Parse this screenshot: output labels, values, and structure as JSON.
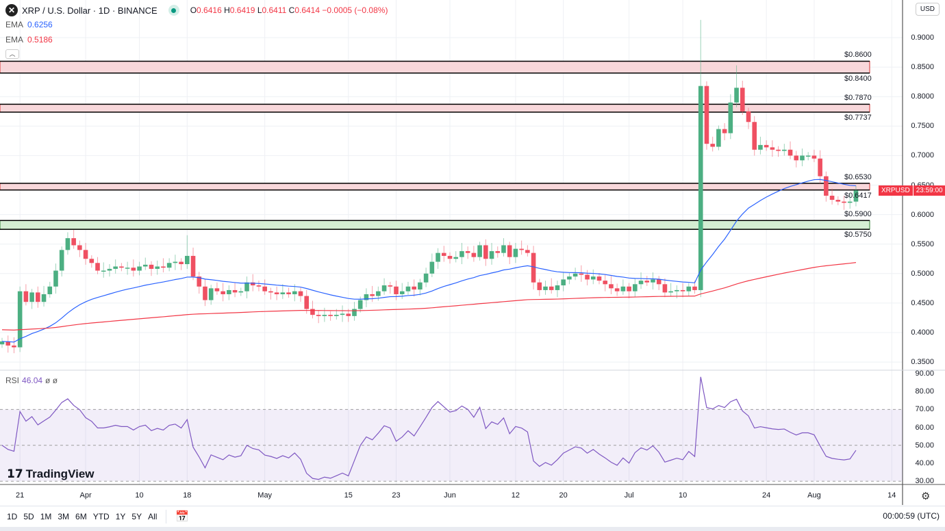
{
  "header": {
    "symbol": "XRP / U.S. Dollar · 1D · BINANCE",
    "open_label": "O",
    "open": "0.6416",
    "high_label": "H",
    "high": "0.6419",
    "low_label": "L",
    "low": "0.6411",
    "close_label": "C",
    "close": "0.6414",
    "change": "−0.0005 (−0.08%)"
  },
  "emas": [
    {
      "label": "EMA",
      "value": "0.6256",
      "color": "#2962ff"
    },
    {
      "label": "EMA",
      "value": "0.5186",
      "color": "#f23645"
    }
  ],
  "currency": "USD",
  "price_tag": {
    "symbol": "XRPUSD",
    "countdown": "23:59:00"
  },
  "rsi": {
    "label": "RSI",
    "value": "46.04",
    "extra": "ø ø"
  },
  "brand": "TradingView",
  "toolbar": {
    "ranges": [
      "1D",
      "5D",
      "1M",
      "3M",
      "6M",
      "YTD",
      "1Y",
      "5Y",
      "All"
    ]
  },
  "clock": "00:00:59 (UTC)",
  "chart_data": {
    "type": "candlestick",
    "start_date": "Mar 18",
    "ylim": [
      0.33,
      0.93
    ],
    "price_ticks": [
      "0.9000",
      "0.8500",
      "0.8000",
      "0.7500",
      "0.7000",
      "0.6500",
      "0.6000",
      "0.5500",
      "0.5000",
      "0.4500",
      "0.4000",
      "0.3500"
    ],
    "rsi_ticks": [
      "90.00",
      "80.00",
      "70.00",
      "60.00",
      "50.00",
      "40.00",
      "30.00"
    ],
    "time_ticks": [
      {
        "label": "21",
        "index": 3
      },
      {
        "label": "Apr",
        "index": 14
      },
      {
        "label": "10",
        "index": 23
      },
      {
        "label": "18",
        "index": 31
      },
      {
        "label": "May",
        "index": 44
      },
      {
        "label": "15",
        "index": 58
      },
      {
        "label": "23",
        "index": 66
      },
      {
        "label": "Jun",
        "index": 75
      },
      {
        "label": "12",
        "index": 86
      },
      {
        "label": "20",
        "index": 94
      },
      {
        "label": "Jul",
        "index": 105
      },
      {
        "label": "10",
        "index": 114
      },
      {
        "label": "24",
        "index": 128
      },
      {
        "label": "Aug",
        "index": 136
      },
      {
        "label": "14",
        "index": 149
      }
    ],
    "close": [
      0.385,
      0.378,
      0.375,
      0.47,
      0.452,
      0.468,
      0.452,
      0.465,
      0.478,
      0.505,
      0.54,
      0.56,
      0.548,
      0.54,
      0.525,
      0.518,
      0.505,
      0.505,
      0.508,
      0.512,
      0.51,
      0.51,
      0.505,
      0.512,
      0.515,
      0.508,
      0.512,
      0.51,
      0.518,
      0.52,
      0.516,
      0.53,
      0.495,
      0.478,
      0.455,
      0.475,
      0.47,
      0.465,
      0.472,
      0.468,
      0.47,
      0.485,
      0.48,
      0.478,
      0.47,
      0.468,
      0.465,
      0.468,
      0.465,
      0.47,
      0.462,
      0.44,
      0.43,
      0.428,
      0.43,
      0.428,
      0.43,
      0.432,
      0.428,
      0.44,
      0.455,
      0.465,
      0.462,
      0.47,
      0.48,
      0.478,
      0.465,
      0.47,
      0.478,
      0.473,
      0.485,
      0.5,
      0.52,
      0.535,
      0.53,
      0.525,
      0.528,
      0.538,
      0.535,
      0.528,
      0.548,
      0.525,
      0.538,
      0.535,
      0.548,
      0.528,
      0.542,
      0.54,
      0.535,
      0.485,
      0.472,
      0.478,
      0.472,
      0.48,
      0.49,
      0.495,
      0.5,
      0.498,
      0.49,
      0.495,
      0.488,
      0.482,
      0.475,
      0.47,
      0.478,
      0.47,
      0.482,
      0.488,
      0.485,
      0.49,
      0.482,
      0.468,
      0.47,
      0.472,
      0.47,
      0.478,
      0.472,
      0.818,
      0.72,
      0.715,
      0.745,
      0.738,
      0.79,
      0.815,
      0.775,
      0.757,
      0.71,
      0.718,
      0.714,
      0.71,
      0.708,
      0.71,
      0.7,
      0.692,
      0.7,
      0.7,
      0.695,
      0.665,
      0.632,
      0.625,
      0.622,
      0.62,
      0.622,
      0.641
    ],
    "first_open": 0.38,
    "notable_highs": [
      {
        "index": 31,
        "value": 0.565
      },
      {
        "index": 117,
        "value": 0.93
      },
      {
        "index": 123,
        "value": 0.853
      }
    ],
    "ema_fast": {
      "period": 30,
      "seed": 0.385,
      "color": "#2962ff"
    },
    "ema_slow": {
      "period": 200,
      "seed": 0.405,
      "color": "#f23645"
    },
    "zones": [
      {
        "top": "0.8600",
        "bottom": "0.8400",
        "type": "resistance",
        "fill": "#f8d7da"
      },
      {
        "top": "0.7870",
        "bottom": "0.7737",
        "type": "resistance",
        "fill": "#f8d7da"
      },
      {
        "top": "0.6530",
        "bottom": "0.6417",
        "type": "resistance",
        "fill": "#f8d7da"
      },
      {
        "top": "0.5900",
        "bottom": "0.5750",
        "type": "support",
        "fill": "#d4eed3"
      }
    ],
    "up_color": "#4caf82",
    "down_color": "#ef5062",
    "rsi_color": "#7e57c2"
  }
}
